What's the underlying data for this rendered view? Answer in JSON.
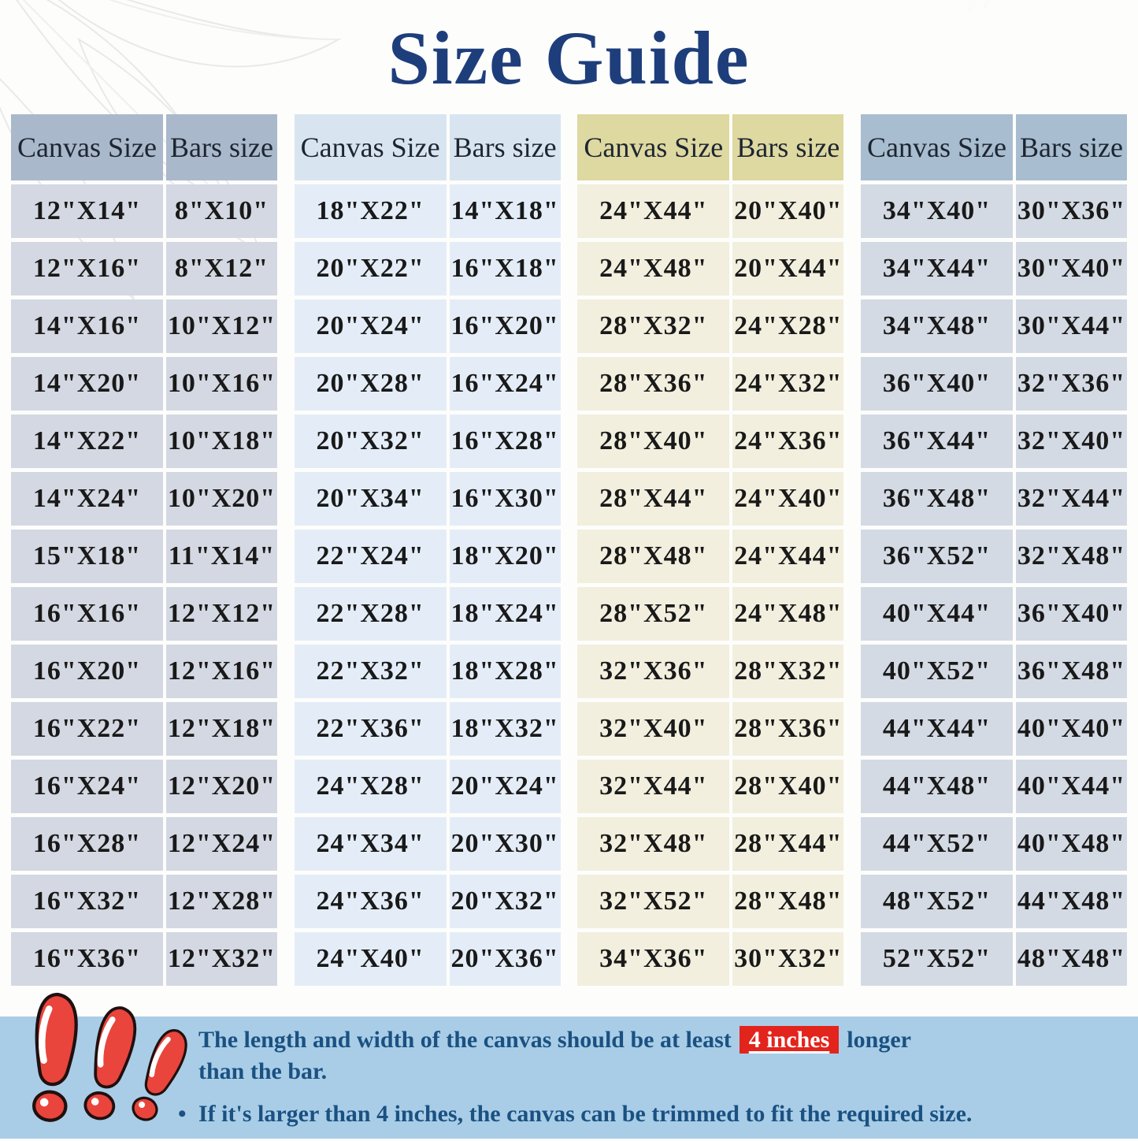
{
  "title": "Size Guide",
  "chart_data": {
    "type": "table",
    "title": "Size Guide",
    "columns": [
      "Canvas Size",
      "Bars size"
    ],
    "tables": [
      {
        "name": "group-1",
        "rows": [
          [
            "12\"X14\"",
            "8\"X10\""
          ],
          [
            "12\"X16\"",
            "8\"X12\""
          ],
          [
            "14\"X16\"",
            "10\"X12\""
          ],
          [
            "14\"X20\"",
            "10\"X16\""
          ],
          [
            "14\"X22\"",
            "10\"X18\""
          ],
          [
            "14\"X24\"",
            "10\"X20\""
          ],
          [
            "15\"X18\"",
            "11\"X14\""
          ],
          [
            "16\"X16\"",
            "12\"X12\""
          ],
          [
            "16\"X20\"",
            "12\"X16\""
          ],
          [
            "16\"X22\"",
            "12\"X18\""
          ],
          [
            "16\"X24\"",
            "12\"X20\""
          ],
          [
            "16\"X28\"",
            "12\"X24\""
          ],
          [
            "16\"X32\"",
            "12\"X28\""
          ],
          [
            "16\"X36\"",
            "12\"X32\""
          ]
        ]
      },
      {
        "name": "group-2",
        "rows": [
          [
            "18\"X22\"",
            "14\"X18\""
          ],
          [
            "20\"X22\"",
            "16\"X18\""
          ],
          [
            "20\"X24\"",
            "16\"X20\""
          ],
          [
            "20\"X28\"",
            "16\"X24\""
          ],
          [
            "20\"X32\"",
            "16\"X28\""
          ],
          [
            "20\"X34\"",
            "16\"X30\""
          ],
          [
            "22\"X24\"",
            "18\"X20\""
          ],
          [
            "22\"X28\"",
            "18\"X24\""
          ],
          [
            "22\"X32\"",
            "18\"X28\""
          ],
          [
            "22\"X36\"",
            "18\"X32\""
          ],
          [
            "24\"X28\"",
            "20\"X24\""
          ],
          [
            "24\"X34\"",
            "20\"X30\""
          ],
          [
            "24\"X36\"",
            "20\"X32\""
          ],
          [
            "24\"X40\"",
            "20\"X36\""
          ]
        ]
      },
      {
        "name": "group-3",
        "rows": [
          [
            "24\"X44\"",
            "20\"X40\""
          ],
          [
            "24\"X48\"",
            "20\"X44\""
          ],
          [
            "28\"X32\"",
            "24\"X28\""
          ],
          [
            "28\"X36\"",
            "24\"X32\""
          ],
          [
            "28\"X40\"",
            "24\"X36\""
          ],
          [
            "28\"X44\"",
            "24\"X40\""
          ],
          [
            "28\"X48\"",
            "24\"X44\""
          ],
          [
            "28\"X52\"",
            "24\"X48\""
          ],
          [
            "32\"X36\"",
            "28\"X32\""
          ],
          [
            "32\"X40\"",
            "28\"X36\""
          ],
          [
            "32\"X44\"",
            "28\"X40\""
          ],
          [
            "32\"X48\"",
            "28\"X44\""
          ],
          [
            "32\"X52\"",
            "28\"X48\""
          ],
          [
            "34\"X36\"",
            "30\"X32\""
          ]
        ]
      },
      {
        "name": "group-4",
        "rows": [
          [
            "34\"X40\"",
            "30\"X36\""
          ],
          [
            "34\"X44\"",
            "30\"X40\""
          ],
          [
            "34\"X48\"",
            "30\"X44\""
          ],
          [
            "36\"X40\"",
            "32\"X36\""
          ],
          [
            "36\"X44\"",
            "32\"X40\""
          ],
          [
            "36\"X48\"",
            "32\"X44\""
          ],
          [
            "36\"X52\"",
            "32\"X48\""
          ],
          [
            "40\"X44\"",
            "36\"X40\""
          ],
          [
            "40\"X52\"",
            "36\"X48\""
          ],
          [
            "44\"X44\"",
            "40\"X40\""
          ],
          [
            "44\"X48\"",
            "40\"X44\""
          ],
          [
            "44\"X52\"",
            "40\"X48\""
          ],
          [
            "48\"X52\"",
            "44\"X48\""
          ],
          [
            "52\"X52\"",
            "48\"X48\""
          ]
        ]
      }
    ]
  },
  "notes": {
    "marker": "•",
    "b1_pre": "The length and width of the canvas should be at least",
    "b1_highlight": "4 inches",
    "b1_post": "longer",
    "b1_line2": "than the bar.",
    "b2": "If it's larger than 4 inches, the canvas can be trimmed to fit the required size."
  },
  "colors": {
    "title": "#1e3e7b",
    "table1_header": "#aab8cb",
    "table1_row": "#d4d8e2",
    "table2_header": "#d8e5f1",
    "table2_row": "#e4edf7",
    "table3_header": "#ded8a1",
    "table3_row": "#f2efde",
    "table4_header": "#a8bdcf",
    "table4_row": "#d4dae4",
    "footer_strip": "#a9cde7",
    "note_text": "#1a5181",
    "highlight_bg": "#e3241c",
    "highlight_text": "#ffffff",
    "warning_red": "#e9453c"
  }
}
